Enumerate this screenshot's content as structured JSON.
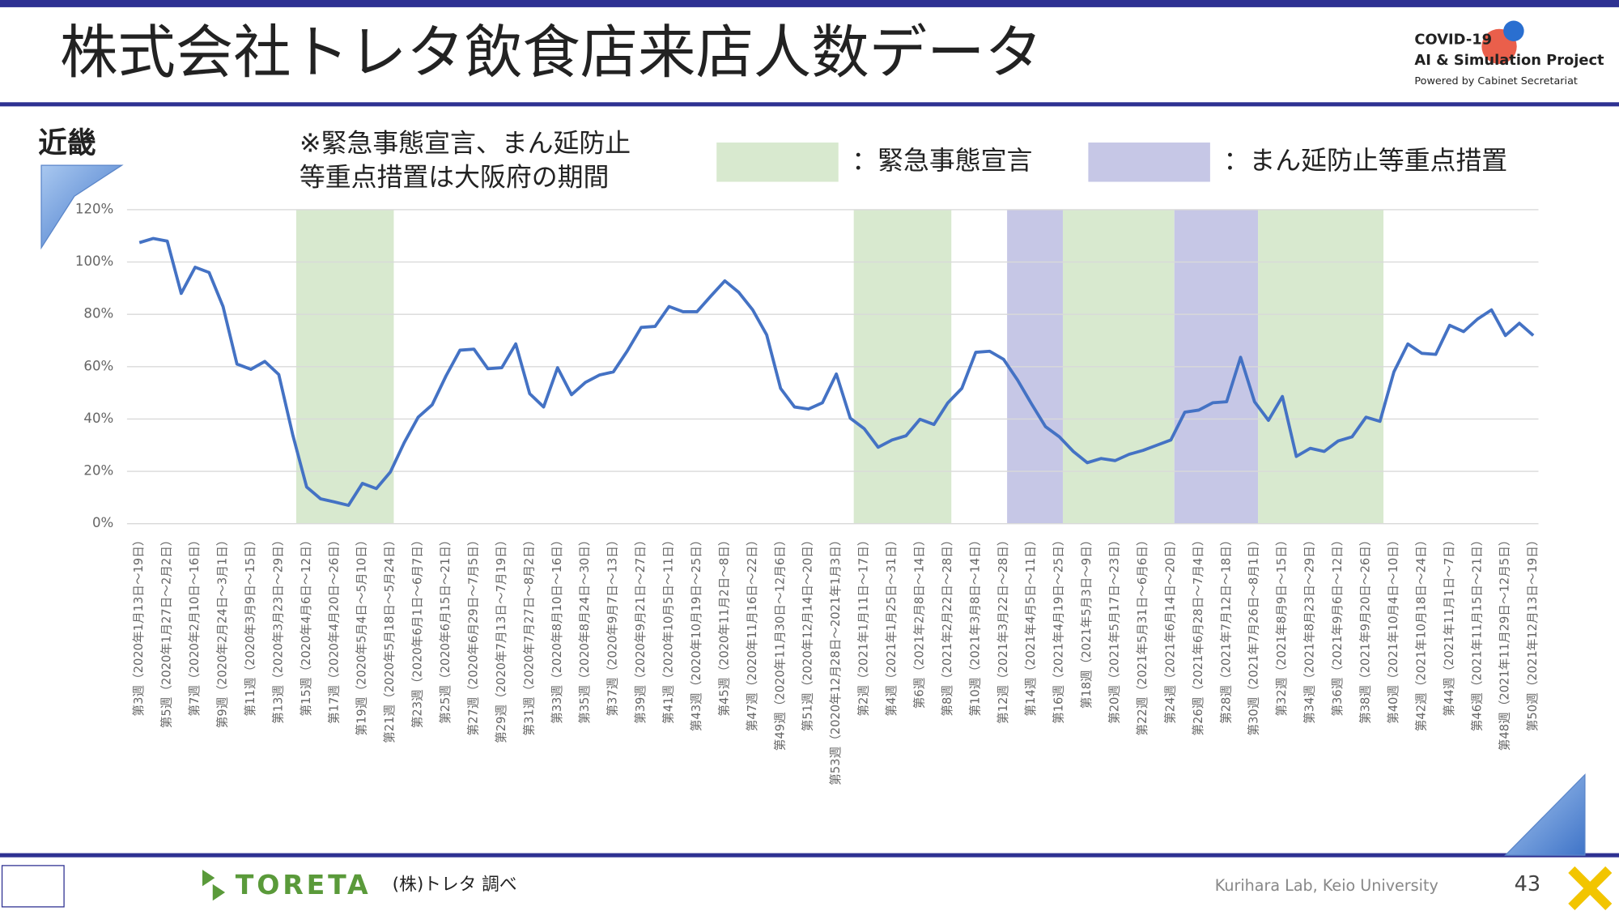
{
  "header": {
    "title": "株式会社トレタ飲食店来店人数データ",
    "logo": [
      "COVID-19",
      "AI & Simulation Project",
      "Powered by Cabinet Secretariat"
    ]
  },
  "region": "近畿",
  "note": [
    "※緊急事態宣言、まん延防止",
    "等重点措置は大阪府の期間"
  ],
  "chart_data": {
    "type": "line",
    "color": "#4472c4",
    "grid": true,
    "categories": [
      "第3週（2020年1月13日～19日）",
      null,
      "第5週（2020年1月27日～2月2日）",
      null,
      "第7週（2020年2月10日～16日）",
      null,
      "第9週（2020年2月24日～3月1日）",
      null,
      "第11週（2020年3月9日～15日）",
      null,
      "第13週（2020年3月23日～29日）",
      null,
      "第15週（2020年4月6日～12日）",
      null,
      "第17週（2020年4月20日～26日）",
      null,
      "第19週（2020年5月4日～5月10日）",
      null,
      "第21週（2020年5月18日～5月24日）",
      null,
      "第23週（2020年6月1日～6月7日）",
      null,
      "第25週（2020年6月15日～21日）",
      null,
      "第27週（2020年6月29日～7月5日）",
      null,
      "第29週（2020年7月13日～7月19日）",
      null,
      "第31週（2020年7月27日～8月2日）",
      null,
      "第33週（2020年8月10日～16日）",
      null,
      "第35週（2020年8月24日～30日）",
      null,
      "第37週（2020年9月7日～13日）",
      null,
      "第39週（2020年9月21日～27日）",
      null,
      "第41週（2020年10月5日～11日）",
      null,
      "第43週（2020年10月19日～25日）",
      null,
      "第45週（2020年11月2日～8日）",
      null,
      "第47週（2020年11月16日～22日）",
      null,
      "第49週（2020年11月30日～12月6日）",
      null,
      "第51週（2020年12月14日～20日）",
      null,
      "第53週（2020年12月28日～2021年1月3日）",
      null,
      "第2週（2021年1月11日～17日）",
      null,
      "第4週（2021年1月25日～31日）",
      null,
      "第6週（2021年2月8日～14日）",
      null,
      "第8週（2021年2月22日～28日）",
      null,
      "第10週（2021年3月8日～14日）",
      null,
      "第12週（2021年3月22日～28日）",
      null,
      "第14週（2021年4月5日～11日）",
      null,
      "第16週（2021年4月19日～25日）",
      null,
      "第18週（2021年5月3日～9日）",
      null,
      "第20週（2021年5月17日～23日）",
      null,
      "第22週（2021年5月31日～6月6日）",
      null,
      "第24週（2021年6月14日～20日）",
      null,
      "第26週（2021年6月28日～7月4日）",
      null,
      "第28週（2021年7月12日～18日）",
      null,
      "第30週（2021年7月26日～8月1日）",
      null,
      "第32週（2021年8月9日～15日）",
      null,
      "第34週（2021年8月23日～29日）",
      null,
      "第36週（2021年9月6日～12日）",
      null,
      "第38週（2021年9月20日～26日）",
      null,
      "第40週（2021年10月4日～10日）",
      null,
      "第42週（2021年10月18日～24日）",
      null,
      "第44週（2021年11月1日～7日）",
      null,
      "第46週（2021年11月15日～21日）",
      null,
      "第48週（2021年11月29日～12月5日）",
      null,
      "第50週（2021年12月13日～19日）"
    ],
    "values": [
      107.4,
      109,
      108,
      88,
      98,
      96,
      83,
      61,
      59,
      62,
      57,
      34,
      14,
      9.5,
      8.3,
      7,
      15.4,
      13.4,
      19.7,
      31,
      40.7,
      45.4,
      56.5,
      66.3,
      66.7,
      59.2,
      59.6,
      68.7,
      49.7,
      44.6,
      59.6,
      49.3,
      54,
      56.8,
      58,
      66,
      75,
      75.4,
      83,
      81,
      81,
      87,
      92.8,
      88.4,
      81.7,
      72.2,
      51.7,
      44.6,
      43.8,
      46.2,
      57.2,
      40.3,
      36.3,
      29.2,
      32,
      33.6,
      39.9,
      37.9,
      46.2,
      51.7,
      65.5,
      65.9,
      62.8,
      54.9,
      45.8,
      37.1,
      33.2,
      27.6,
      23.3,
      24.9,
      24.1,
      26.5,
      28,
      30,
      32,
      42.6,
      43.4,
      46.2,
      46.6,
      63.6,
      46.6,
      39.5,
      48.6,
      25.7,
      28.8,
      27.6,
      31.6,
      33.2,
      40.7,
      39.1,
      58,
      68.7,
      65.1,
      64.7,
      75.8,
      73.4,
      78.2,
      81.7,
      71.9,
      76.6,
      71.9
    ],
    "ylim": [
      0,
      120
    ],
    "yticks": [
      {
        "value": 0,
        "label": "0%"
      },
      {
        "value": 20,
        "label": "20%"
      },
      {
        "value": 40,
        "label": "40%"
      },
      {
        "value": 60,
        "label": "60%"
      },
      {
        "value": 80,
        "label": "80%"
      },
      {
        "value": 100,
        "label": "100%"
      },
      {
        "value": 120,
        "label": "120%"
      }
    ],
    "legend": [
      {
        "label": "：緊急事態宣言",
        "color": "#d8e9cf"
      },
      {
        "label": "：まん延防止等重点措置",
        "color": "#c6c7e6"
      }
    ],
    "periods": [
      {
        "kind": 0,
        "from": 11.25,
        "to": 18.25
      },
      {
        "kind": 0,
        "from": 51.25,
        "to": 58.25
      },
      {
        "kind": 1,
        "from": 62.25,
        "to": 66.25
      },
      {
        "kind": 0,
        "from": 66.25,
        "to": 74.25
      },
      {
        "kind": 1,
        "from": 74.25,
        "to": 80.25
      },
      {
        "kind": 0,
        "from": 80.25,
        "to": 89.25
      }
    ]
  },
  "footer": {
    "brand": "TORETA",
    "source": "(株)トレタ 調べ",
    "lab": "Kurihara Lab, Keio University",
    "page": "43"
  }
}
